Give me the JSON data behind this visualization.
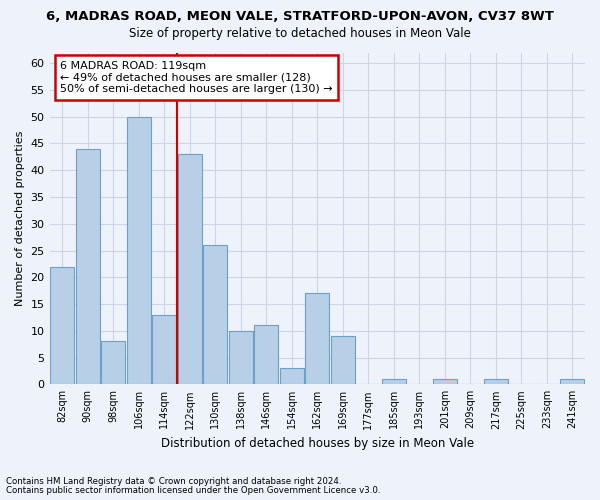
{
  "title1": "6, MADRAS ROAD, MEON VALE, STRATFORD-UPON-AVON, CV37 8WT",
  "title2": "Size of property relative to detached houses in Meon Vale",
  "xlabel": "Distribution of detached houses by size in Meon Vale",
  "ylabel": "Number of detached properties",
  "categories": [
    "82sqm",
    "90sqm",
    "98sqm",
    "106sqm",
    "114sqm",
    "122sqm",
    "130sqm",
    "138sqm",
    "146sqm",
    "154sqm",
    "162sqm",
    "169sqm",
    "177sqm",
    "185sqm",
    "193sqm",
    "201sqm",
    "209sqm",
    "217sqm",
    "225sqm",
    "233sqm",
    "241sqm"
  ],
  "values": [
    22,
    44,
    8,
    50,
    13,
    43,
    26,
    10,
    11,
    3,
    17,
    9,
    0,
    1,
    0,
    1,
    0,
    1,
    0,
    0,
    1
  ],
  "bar_color": "#b8cfe8",
  "bar_edge_color": "#6fa0cc",
  "red_line_index": 4.5,
  "annotation_line1": "6 MADRAS ROAD: 119sqm",
  "annotation_line2": "← 49% of detached houses are smaller (128)",
  "annotation_line3": "50% of semi-detached houses are larger (130) →",
  "annotation_box_color": "white",
  "annotation_box_edge_color": "#cc0000",
  "red_line_color": "#cc0000",
  "grid_color": "#ccd4e8",
  "ylim": [
    0,
    62
  ],
  "yticks": [
    0,
    5,
    10,
    15,
    20,
    25,
    30,
    35,
    40,
    45,
    50,
    55,
    60
  ],
  "footnote1": "Contains HM Land Registry data © Crown copyright and database right 2024.",
  "footnote2": "Contains public sector information licensed under the Open Government Licence v3.0.",
  "background_color": "#eef2fa"
}
